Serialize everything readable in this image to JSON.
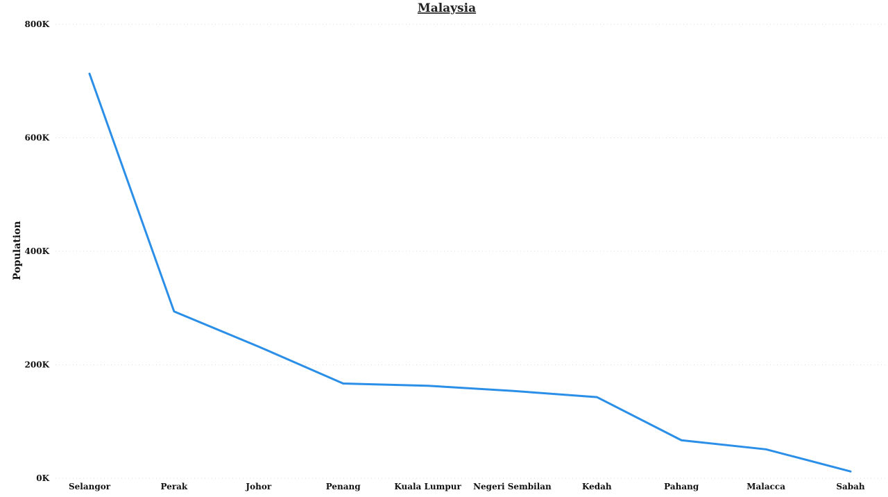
{
  "chart_data": {
    "type": "line",
    "title": "Malaysia",
    "xlabel": "",
    "ylabel": "Population",
    "categories": [
      "Selangor",
      "Perak",
      "Johor",
      "Penang",
      "Kuala Lumpur",
      "Negeri Sembilan",
      "Kedah",
      "Pahang",
      "Malacca",
      "Sabah"
    ],
    "series": [
      {
        "values": [
          713000,
          294000,
          232000,
          167000,
          163000,
          154000,
          143000,
          67000,
          51000,
          12000
        ]
      }
    ],
    "ylim": [
      0,
      800000
    ],
    "yticks": [
      0,
      200000,
      400000,
      600000,
      800000
    ],
    "ytick_labels": [
      "0K",
      "200K",
      "400K",
      "600K",
      "800K"
    ],
    "grid": true,
    "legend": "none",
    "colors": {
      "line": "#2b8fe8"
    }
  }
}
